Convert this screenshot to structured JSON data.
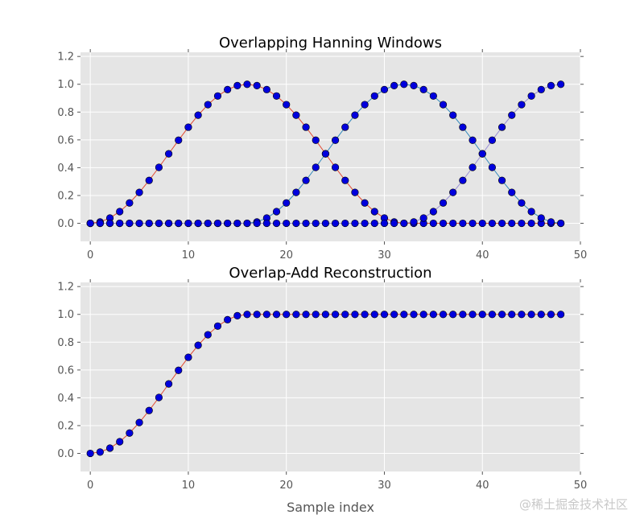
{
  "watermark": "@稀土掘金技术社区",
  "colors": {
    "background": "#e5e5e5",
    "grid": "#ffffff",
    "marker": "#0000dd",
    "series": [
      "#e24a33",
      "#348abd",
      "#988ed5"
    ]
  },
  "chart_data": [
    {
      "type": "line",
      "title": "Overlapping Hanning Windows",
      "xlabel": "",
      "ylabel": "",
      "xlim": [
        -1,
        50
      ],
      "ylim": [
        -0.13,
        1.23
      ],
      "xticks": [
        0,
        10,
        20,
        30,
        40,
        50
      ],
      "yticks": [
        0.0,
        0.2,
        0.4,
        0.6,
        0.8,
        1.0,
        1.2
      ],
      "ytick_labels": [
        "0.0",
        "0.2",
        "0.4",
        "0.6",
        "0.8",
        "1.0",
        "1.2"
      ],
      "grid": true,
      "marker": "circle",
      "x": [
        0,
        1,
        2,
        3,
        4,
        5,
        6,
        7,
        8,
        9,
        10,
        11,
        12,
        13,
        14,
        15,
        16,
        17,
        18,
        19,
        20,
        21,
        22,
        23,
        24,
        25,
        26,
        27,
        28,
        29,
        30,
        31,
        32,
        33,
        34,
        35,
        36,
        37,
        38,
        39,
        40,
        41,
        42,
        43,
        44,
        45,
        46,
        47,
        48
      ],
      "series": [
        {
          "color": "#e24a33",
          "values": [
            0,
            0.009607,
            0.03806,
            0.084265,
            0.146447,
            0.222215,
            0.308658,
            0.402455,
            0.5,
            0.597545,
            0.691342,
            0.777785,
            0.853553,
            0.915735,
            0.96194,
            0.990393,
            1,
            0.990393,
            0.96194,
            0.915735,
            0.853553,
            0.777785,
            0.691342,
            0.597545,
            0.5,
            0.402455,
            0.308658,
            0.222215,
            0.146447,
            0.084265,
            0.03806,
            0.009607,
            0,
            0,
            0,
            0,
            0,
            0,
            0,
            0,
            0,
            0,
            0,
            0,
            0,
            0,
            0,
            0,
            0
          ]
        },
        {
          "color": "#348abd",
          "values": [
            0,
            0,
            0,
            0,
            0,
            0,
            0,
            0,
            0,
            0,
            0,
            0,
            0,
            0,
            0,
            0,
            0,
            0.009607,
            0.03806,
            0.084265,
            0.146447,
            0.222215,
            0.308658,
            0.402455,
            0.5,
            0.597545,
            0.691342,
            0.777785,
            0.853553,
            0.915735,
            0.96194,
            0.990393,
            1,
            0.990393,
            0.96194,
            0.915735,
            0.853553,
            0.777785,
            0.691342,
            0.597545,
            0.5,
            0.402455,
            0.308658,
            0.222215,
            0.146447,
            0.084265,
            0.03806,
            0.009607,
            0
          ]
        },
        {
          "color": "#988ed5",
          "values": [
            0,
            0,
            0,
            0,
            0,
            0,
            0,
            0,
            0,
            0,
            0,
            0,
            0,
            0,
            0,
            0,
            0,
            0,
            0,
            0,
            0,
            0,
            0,
            0,
            0,
            0,
            0,
            0,
            0,
            0,
            0,
            0,
            0,
            0.009607,
            0.03806,
            0.084265,
            0.146447,
            0.222215,
            0.308658,
            0.402455,
            0.5,
            0.597545,
            0.691342,
            0.777785,
            0.853553,
            0.915735,
            0.96194,
            0.990393,
            1
          ]
        }
      ]
    },
    {
      "type": "line",
      "title": "Overlap-Add Reconstruction",
      "xlabel": "Sample index",
      "ylabel": "",
      "xlim": [
        -1,
        50
      ],
      "ylim": [
        -0.13,
        1.23
      ],
      "xticks": [
        0,
        10,
        20,
        30,
        40,
        50
      ],
      "yticks": [
        0.0,
        0.2,
        0.4,
        0.6,
        0.8,
        1.0,
        1.2
      ],
      "ytick_labels": [
        "0.0",
        "0.2",
        "0.4",
        "0.6",
        "0.8",
        "1.0",
        "1.2"
      ],
      "grid": true,
      "marker": "circle",
      "x": [
        0,
        1,
        2,
        3,
        4,
        5,
        6,
        7,
        8,
        9,
        10,
        11,
        12,
        13,
        14,
        15,
        16,
        17,
        18,
        19,
        20,
        21,
        22,
        23,
        24,
        25,
        26,
        27,
        28,
        29,
        30,
        31,
        32,
        33,
        34,
        35,
        36,
        37,
        38,
        39,
        40,
        41,
        42,
        43,
        44,
        45,
        46,
        47,
        48
      ],
      "series": [
        {
          "color": "#e24a33",
          "values": [
            0,
            0.009607,
            0.03806,
            0.084265,
            0.146447,
            0.222215,
            0.308658,
            0.402455,
            0.5,
            0.597545,
            0.691342,
            0.777785,
            0.853553,
            0.915735,
            0.96194,
            0.990393,
            1,
            1,
            1,
            1,
            1,
            1,
            1,
            1,
            1,
            1,
            1,
            1,
            1,
            1,
            1,
            1,
            1,
            1,
            1,
            1,
            1,
            1,
            1,
            1,
            1,
            1,
            1,
            1,
            1,
            1,
            1,
            1,
            1
          ]
        }
      ]
    }
  ]
}
